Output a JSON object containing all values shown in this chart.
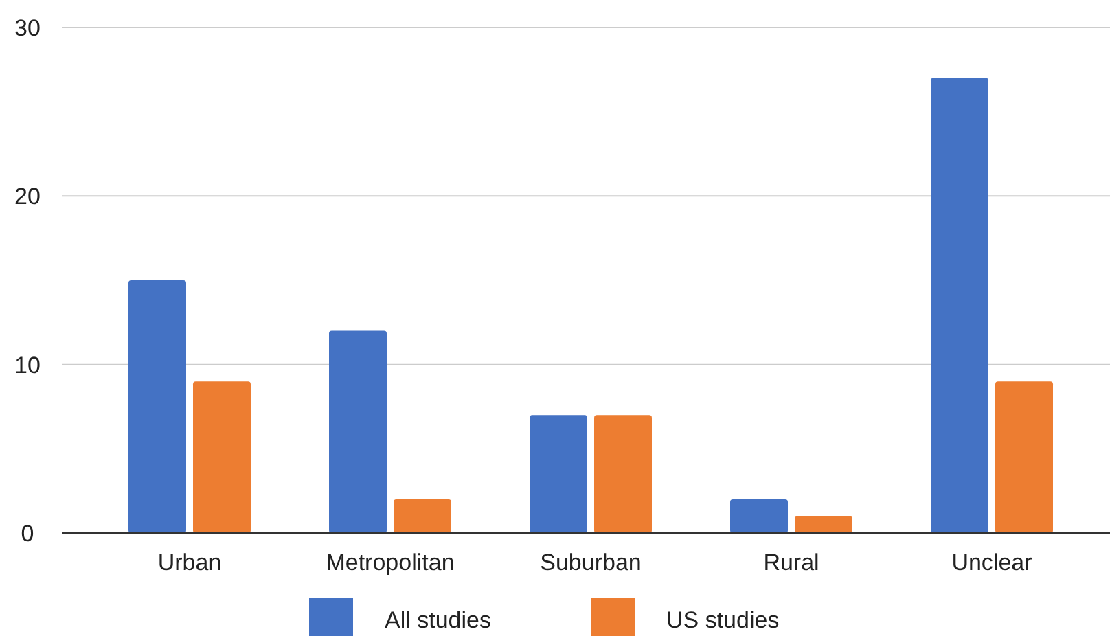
{
  "chart_data": {
    "type": "bar",
    "categories": [
      "Urban",
      "Metropolitan",
      "Suburban",
      "Rural",
      "Unclear"
    ],
    "series": [
      {
        "name": "All studies",
        "color": "#4472c4",
        "values": [
          15,
          12,
          7,
          2,
          27
        ]
      },
      {
        "name": "US studies",
        "color": "#ed7d31",
        "values": [
          9,
          2,
          7,
          1,
          9
        ]
      }
    ],
    "ylim": [
      0,
      30
    ],
    "yticks": [
      0,
      10,
      20,
      30
    ],
    "grid": "y",
    "legend": "bottom"
  }
}
